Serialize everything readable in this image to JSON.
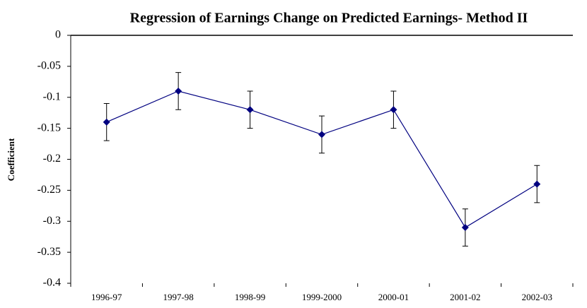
{
  "chart_data": {
    "type": "line",
    "title": "Regression of Earnings Change on Predicted Earnings- Method II",
    "y_label": "Coefficient",
    "categories": [
      "1996-97",
      "1997-98",
      "1998-99",
      "1999-2000",
      "2000-01",
      "2001-02",
      "2002-03"
    ],
    "values": [
      -0.14,
      -0.09,
      -0.12,
      -0.16,
      -0.12,
      -0.31,
      -0.24
    ],
    "errors": [
      0.03,
      0.03,
      0.03,
      0.03,
      0.03,
      0.03,
      0.03
    ],
    "color": "#000080",
    "ylim": [
      -0.4,
      0
    ],
    "yticks": [
      0,
      -0.05,
      -0.1,
      -0.15,
      -0.2,
      -0.25,
      -0.3,
      -0.35,
      -0.4
    ],
    "grid": false
  }
}
